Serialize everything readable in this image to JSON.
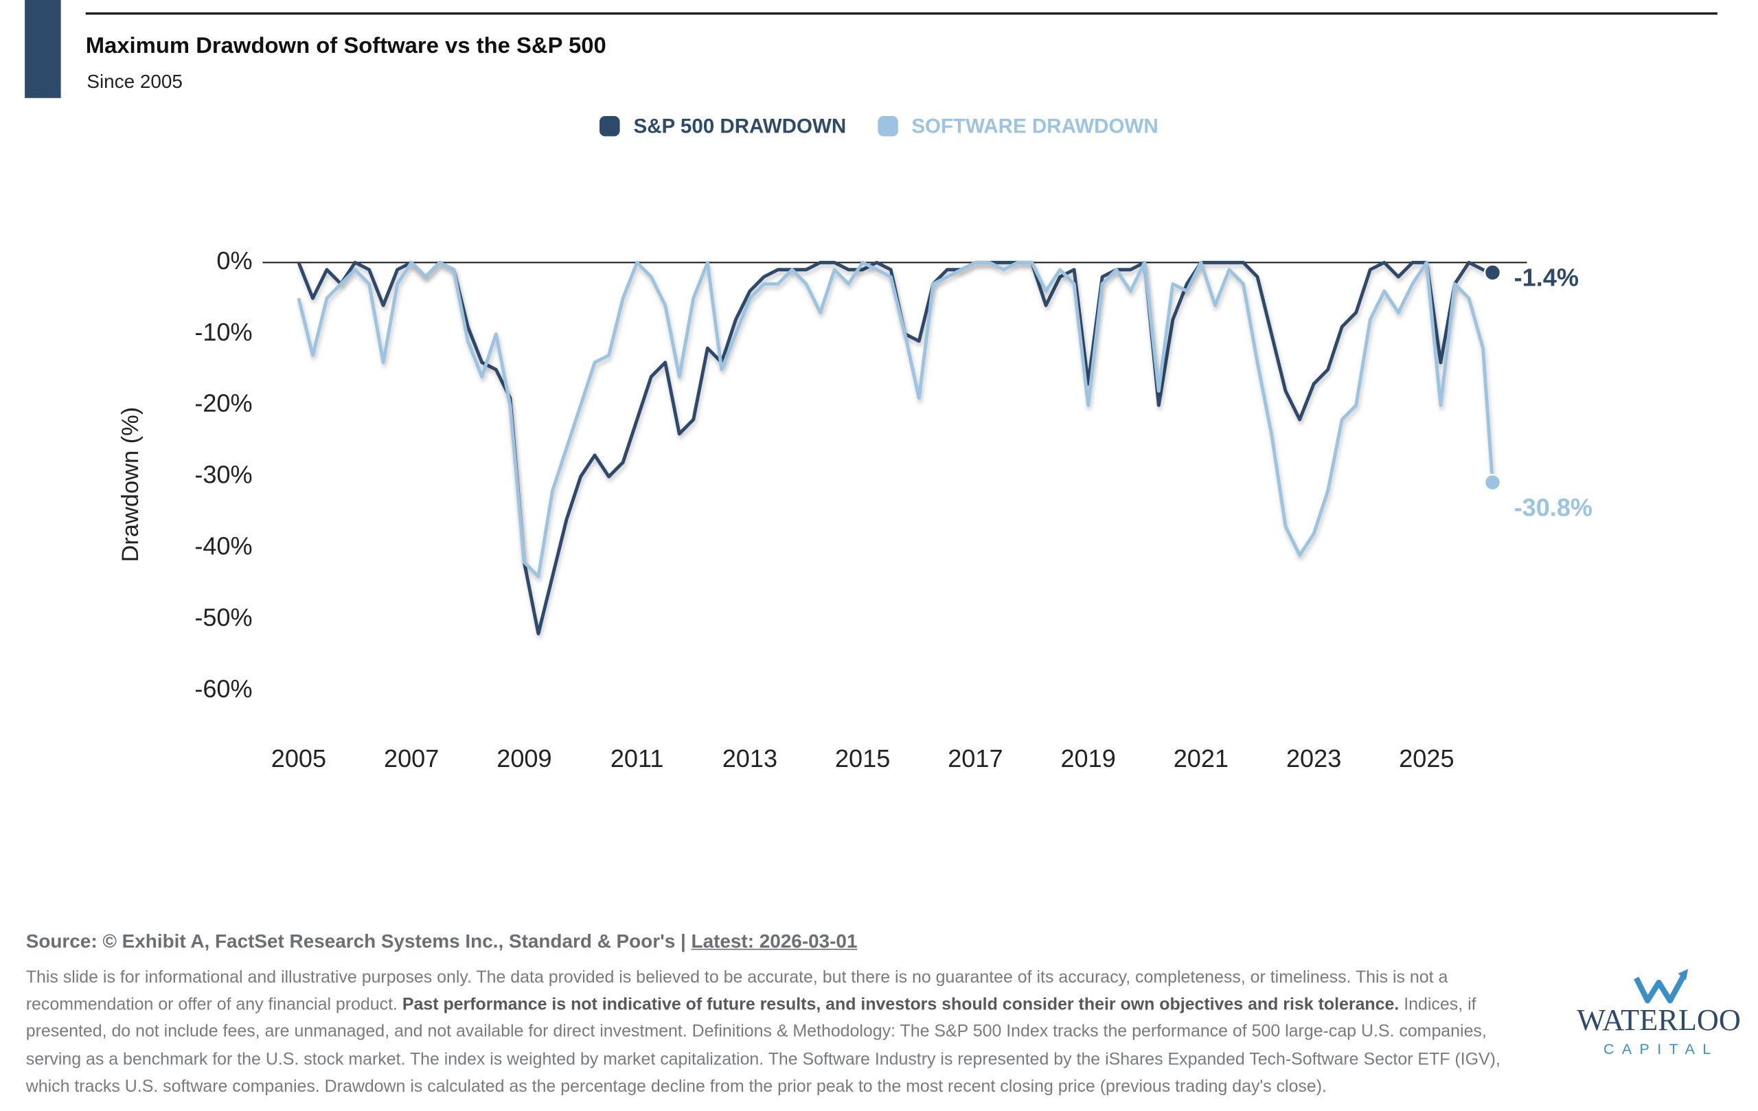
{
  "header": {
    "title": "Maximum Drawdown of Software vs the S&P 500",
    "subtitle": "Since 2005"
  },
  "chart_data": {
    "type": "line",
    "y_label": "Drawdown (%)",
    "x": [
      2005.0,
      2005.25,
      2005.5,
      2005.75,
      2006.0,
      2006.25,
      2006.5,
      2006.75,
      2007.0,
      2007.25,
      2007.5,
      2007.75,
      2008.0,
      2008.25,
      2008.5,
      2008.75,
      2009.0,
      2009.25,
      2009.5,
      2009.75,
      2010.0,
      2010.25,
      2010.5,
      2010.75,
      2011.0,
      2011.25,
      2011.5,
      2011.75,
      2012.0,
      2012.25,
      2012.5,
      2012.75,
      2013.0,
      2013.25,
      2013.5,
      2013.75,
      2014.0,
      2014.25,
      2014.5,
      2014.75,
      2015.0,
      2015.25,
      2015.5,
      2015.75,
      2016.0,
      2016.25,
      2016.5,
      2016.75,
      2017.0,
      2017.25,
      2017.5,
      2017.75,
      2018.0,
      2018.25,
      2018.5,
      2018.75,
      2019.0,
      2019.25,
      2019.5,
      2019.75,
      2020.0,
      2020.25,
      2020.5,
      2020.75,
      2021.0,
      2021.25,
      2021.5,
      2021.75,
      2022.0,
      2022.25,
      2022.5,
      2022.75,
      2023.0,
      2023.25,
      2023.5,
      2023.75,
      2024.0,
      2024.25,
      2024.5,
      2024.75,
      2025.0,
      2025.25,
      2025.5,
      2025.75,
      2026.0,
      2026.17
    ],
    "series": [
      {
        "name": "S&P 500 DRAWDOWN",
        "color": "#2d4a6b",
        "values": [
          0,
          -5,
          -1,
          -3,
          0,
          -1,
          -6,
          -1,
          0,
          -2,
          0,
          -1,
          -9,
          -14,
          -15,
          -19,
          -42,
          -52,
          -44,
          -36,
          -30,
          -27,
          -30,
          -28,
          -22,
          -16,
          -14,
          -24,
          -22,
          -12,
          -14,
          -8,
          -4,
          -2,
          -1,
          -1,
          -1,
          0,
          0,
          -1,
          -1,
          0,
          -1,
          -10,
          -11,
          -3,
          -1,
          -1,
          0,
          0,
          0,
          0,
          0,
          -6,
          -2,
          -1,
          -17,
          -2,
          -1,
          -1,
          0,
          -20,
          -8,
          -3,
          0,
          0,
          0,
          0,
          -2,
          -10,
          -18,
          -22,
          -17,
          -15,
          -9,
          -7,
          -1,
          0,
          -2,
          0,
          0,
          -14,
          -3,
          0,
          -1,
          -1.4
        ],
        "value_labels": [
          null,
          null,
          null,
          null,
          null,
          null,
          null,
          null,
          null,
          null,
          null,
          null,
          null,
          null,
          null,
          null,
          null,
          null,
          null,
          null,
          null,
          null,
          null,
          null,
          null,
          null,
          null,
          null,
          null,
          null,
          null,
          null,
          null,
          null,
          null,
          null,
          null,
          null,
          null,
          null,
          null,
          null,
          null,
          null,
          null,
          null,
          null,
          null,
          null,
          null,
          null,
          null,
          null,
          null,
          null,
          null,
          null,
          null,
          null,
          null,
          null,
          null,
          null,
          null,
          null,
          null,
          null,
          null,
          null,
          null,
          null,
          null,
          null,
          null,
          null,
          null,
          null,
          null,
          null,
          null,
          null,
          null,
          null,
          null,
          null,
          "-1.4%"
        ]
      },
      {
        "name": "SOFTWARE DRAWDOWN",
        "color": "#9cc4e0",
        "values": [
          -5,
          -13,
          -5,
          -3,
          -1,
          -3,
          -14,
          -3,
          0,
          -2,
          0,
          -1,
          -11,
          -16,
          -10,
          -20,
          -42,
          -44,
          -32,
          -26,
          -20,
          -14,
          -13,
          -5,
          0,
          -2,
          -6,
          -16,
          -5,
          0,
          -15,
          -10,
          -5,
          -3,
          -3,
          -1,
          -3,
          -7,
          -1,
          -3,
          0,
          -1,
          -2,
          -10,
          -19,
          -3,
          -2,
          -1,
          0,
          0,
          -1,
          0,
          0,
          -4,
          -1,
          -3,
          -20,
          -3,
          -1,
          -4,
          0,
          -18,
          -3,
          -4,
          0,
          -6,
          -1,
          -3,
          -14,
          -24,
          -37,
          -41,
          -38,
          -32,
          -22,
          -20,
          -8,
          -4,
          -7,
          -3,
          0,
          -20,
          -3,
          -5,
          -12,
          -30.8
        ],
        "value_labels": [
          null,
          null,
          null,
          null,
          null,
          null,
          null,
          null,
          null,
          null,
          null,
          null,
          null,
          null,
          null,
          null,
          null,
          null,
          null,
          null,
          null,
          null,
          null,
          null,
          null,
          null,
          null,
          null,
          null,
          null,
          null,
          null,
          null,
          null,
          null,
          null,
          null,
          null,
          null,
          null,
          null,
          null,
          null,
          null,
          null,
          null,
          null,
          null,
          null,
          null,
          null,
          null,
          null,
          null,
          null,
          null,
          null,
          null,
          null,
          null,
          null,
          null,
          null,
          null,
          null,
          null,
          null,
          null,
          null,
          null,
          null,
          null,
          null,
          null,
          null,
          null,
          null,
          null,
          null,
          null,
          null,
          null,
          null,
          null,
          null,
          "-30.8%"
        ]
      }
    ],
    "xlim": [
      2004.36,
      2026.78
    ],
    "xticks": [
      2005,
      2007,
      2009,
      2011,
      2013,
      2015,
      2017,
      2019,
      2021,
      2023,
      2025
    ],
    "ylim": [
      -60,
      0
    ],
    "yticks": [
      {
        "value": 0,
        "label": "0%"
      },
      {
        "value": -10,
        "label": "-10%"
      },
      {
        "value": -20,
        "label": "-20%"
      },
      {
        "value": -30,
        "label": "-30%"
      },
      {
        "value": -40,
        "label": "-40%"
      },
      {
        "value": -50,
        "label": "-50%"
      },
      {
        "value": -60,
        "label": "-60%"
      }
    ],
    "legend": "top",
    "grid": false
  },
  "footer": {
    "source": "Source: © Exhibit A, FactSet Research Systems Inc., Standard & Poor's | ",
    "latest": "Latest: 2026-03-01",
    "disclaimer_start": "This slide is for informational and illustrative purposes only. The data provided is believed to be accurate, but there is no guarantee of its accuracy, completeness, or timeliness. This is not a recommendation or offer of any financial product. ",
    "disclaimer_bold": "Past performance is not indicative of future results, and investors should consider their own objectives and risk tolerance.",
    "disclaimer_end": " Indices, if presented, do not include fees, are unmanaged, and not available for direct investment. Definitions & Methodology: The S&P 500 Index tracks the performance of 500 large-cap U.S. companies, serving as a benchmark for the U.S. stock market. The index is weighted by market capitalization. The Software Industry is represented by the iShares Expanded Tech-Software Sector ETF (IGV), which tracks U.S. software companies. Drawdown is calculated as the percentage decline from the prior peak to the most recent closing price (previous trading day's close)."
  },
  "logo": {
    "name": "WATERLOO",
    "sub": "CAPITAL"
  }
}
